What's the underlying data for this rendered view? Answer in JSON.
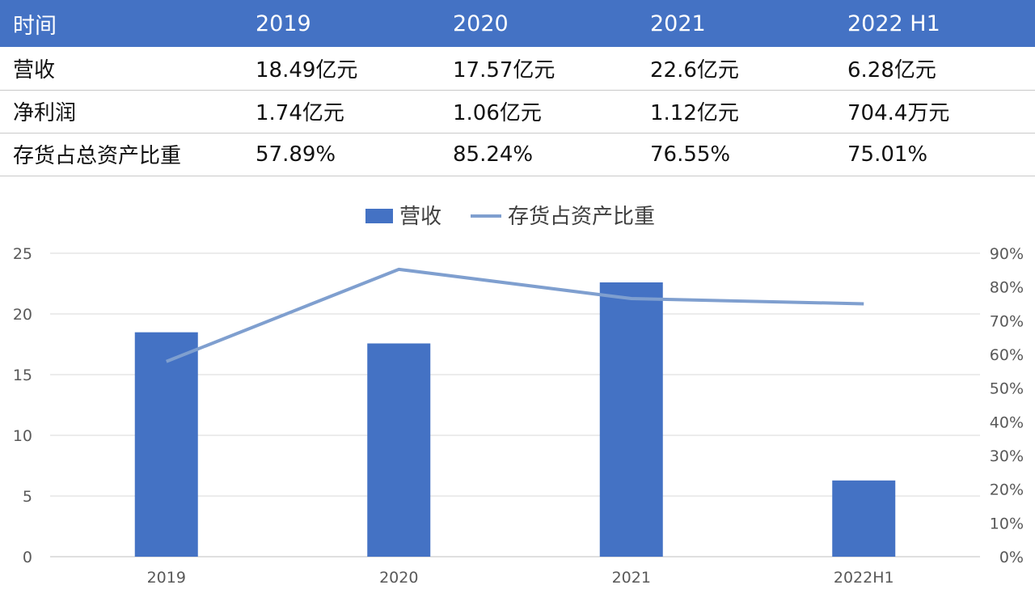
{
  "table": {
    "headers": [
      "时间",
      "2019",
      "2020",
      "2021",
      "2022 H1"
    ],
    "rows": [
      [
        "营收",
        "18.49亿元",
        "17.57亿元",
        "22.6亿元",
        "6.28亿元"
      ],
      [
        "净利润",
        "1.74亿元",
        "1.06亿元",
        "1.12亿元",
        "704.4万元"
      ],
      [
        "存货占总资产比重",
        "57.89%",
        "85.24%",
        "76.55%",
        "75.01%"
      ]
    ]
  },
  "colors": {
    "header_bg": "#4472c4",
    "bar": "#4472c4",
    "line": "#7f9fcf",
    "grid": "#d9d9d9"
  },
  "chart_data": {
    "type": "bar",
    "categories": [
      "2019",
      "2020",
      "2021",
      "2022H1"
    ],
    "series": [
      {
        "name": "营收",
        "type": "bar",
        "axis": "left",
        "values": [
          18.49,
          17.57,
          22.6,
          6.28
        ]
      },
      {
        "name": "存货占资产比重",
        "type": "line",
        "axis": "right",
        "values": [
          57.89,
          85.24,
          76.55,
          75.01
        ]
      }
    ],
    "y_left": {
      "ylim": [
        0,
        25
      ],
      "ticks": [
        "0",
        "5",
        "10",
        "15",
        "20",
        "25"
      ]
    },
    "y_right": {
      "ylim": [
        0,
        90
      ],
      "ticks": [
        "0%",
        "10%",
        "20%",
        "30%",
        "40%",
        "50%",
        "60%",
        "70%",
        "80%",
        "90%"
      ]
    },
    "legend_position": "top-center",
    "grid": true
  }
}
